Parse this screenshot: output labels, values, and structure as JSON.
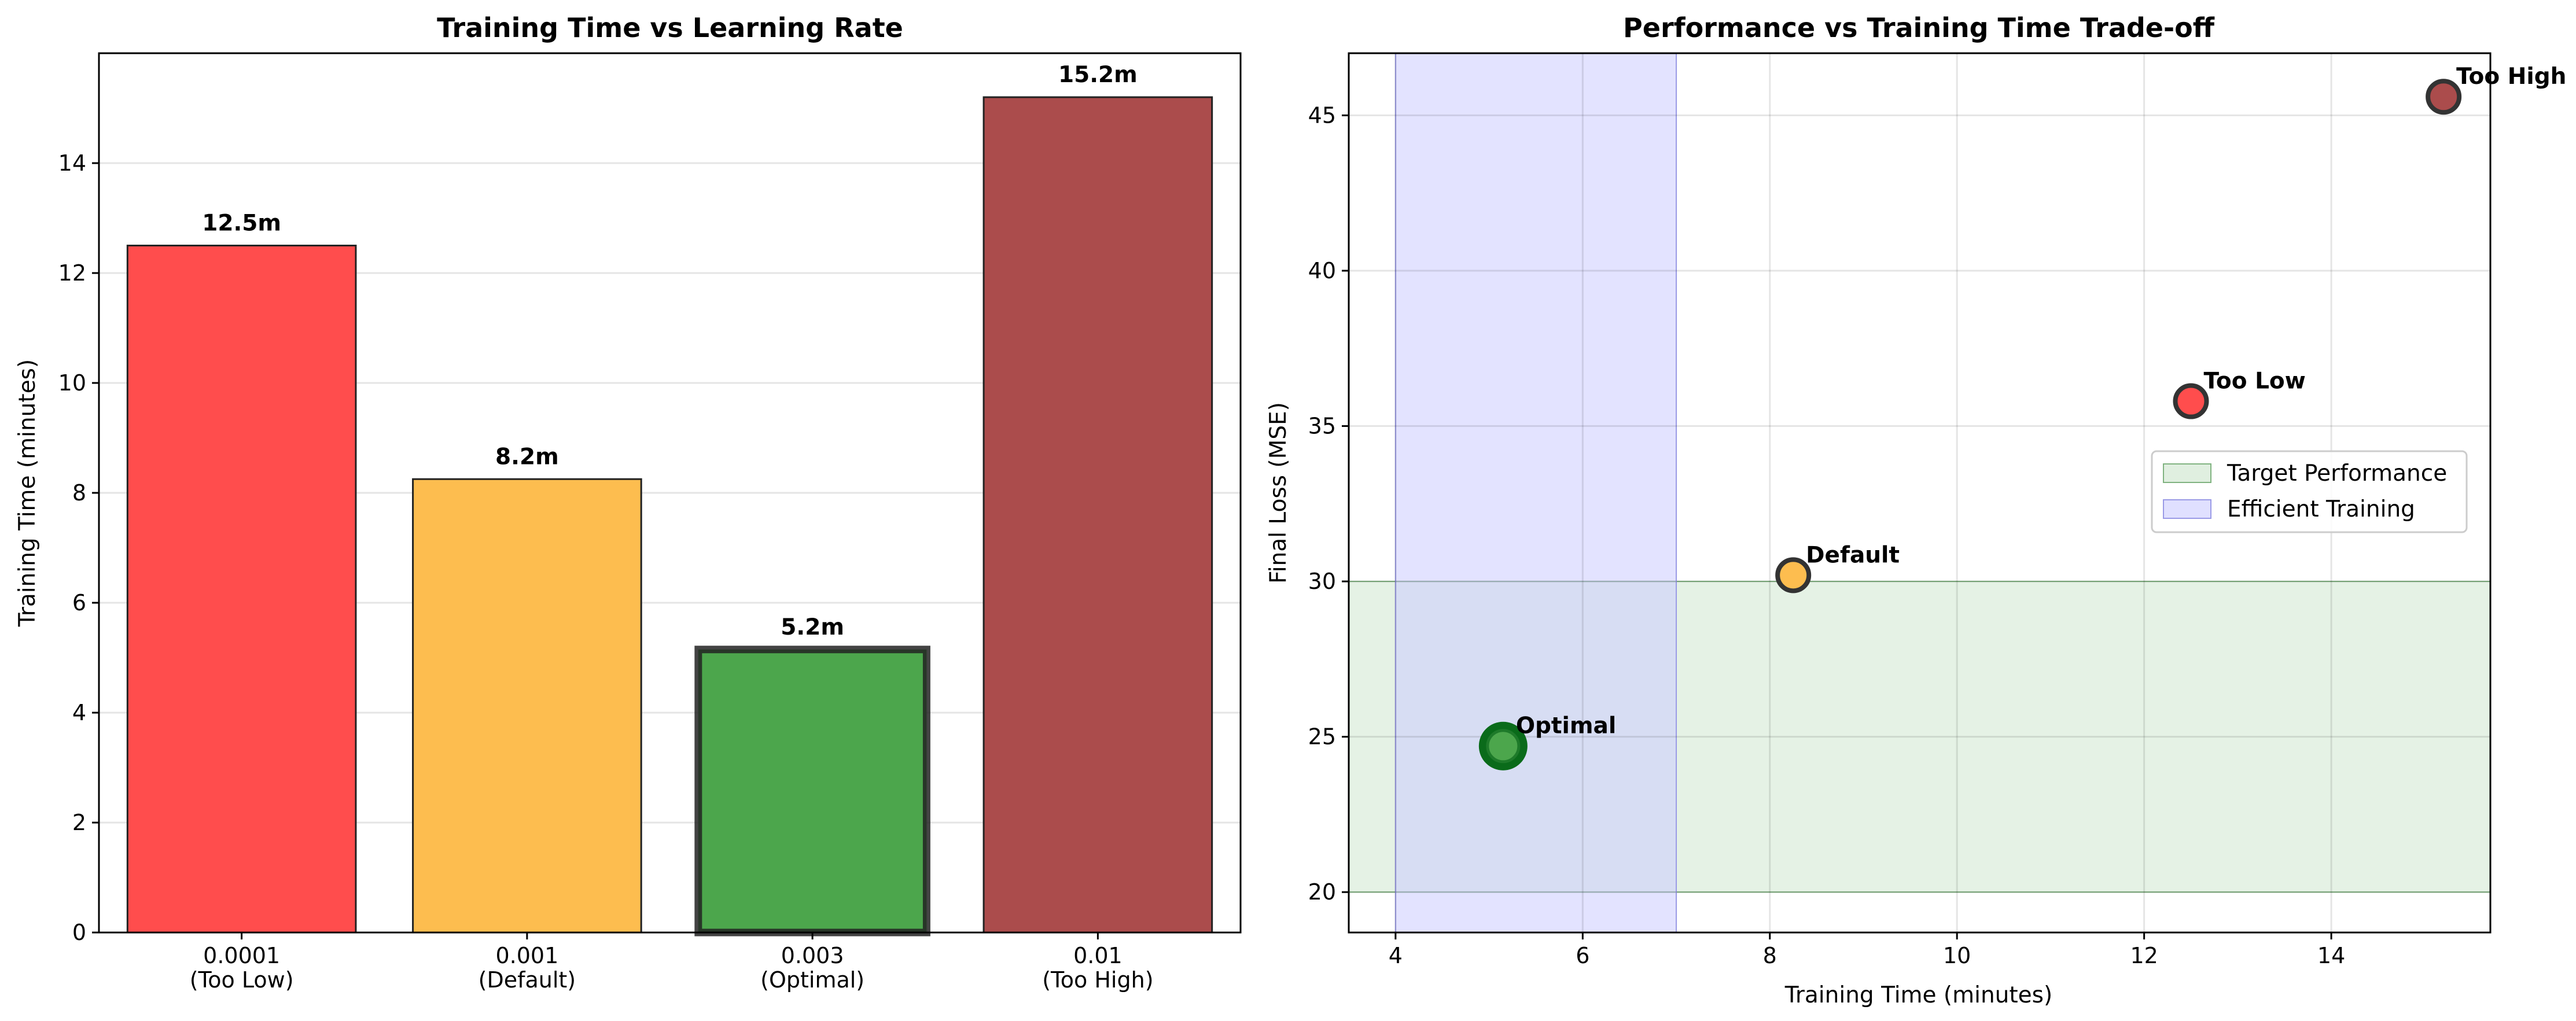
{
  "chart_data": [
    {
      "type": "bar",
      "title": "Training Time vs Learning Rate",
      "xlabel": "",
      "ylabel": "Training Time (minutes)",
      "ylim": [
        0,
        16
      ],
      "yticks": [
        0,
        2,
        4,
        6,
        8,
        10,
        12,
        14
      ],
      "grid": "y",
      "categories": [
        {
          "rate": "0.0001",
          "tag": "(Too Low)"
        },
        {
          "rate": "0.001",
          "tag": "(Default)"
        },
        {
          "rate": "0.003",
          "tag": "(Optimal)"
        },
        {
          "rate": "0.01",
          "tag": "(Too High)"
        }
      ],
      "values": [
        12.5,
        8.25,
        5.15,
        15.2
      ],
      "data_labels": [
        "12.5m",
        "8.2m",
        "5.2m",
        "15.2m"
      ],
      "colors": [
        "#ff4d4d",
        "#fdbd4f",
        "#4ca64c",
        "#ab4c4c"
      ],
      "highlight_index": 2
    },
    {
      "type": "scatter",
      "title": "Performance vs Training Time Trade-off",
      "xlabel": "Training Time (minutes)",
      "ylabel": "Final Loss (MSE)",
      "xlim": [
        3.5,
        15.7
      ],
      "ylim": [
        18.7,
        47
      ],
      "xticks": [
        4,
        6,
        8,
        10,
        12,
        14
      ],
      "yticks": [
        20,
        25,
        30,
        35,
        40,
        45
      ],
      "grid": "both",
      "points": [
        {
          "x": 12.5,
          "y": 35.8,
          "label": "Too Low",
          "color": "#ff4d4d"
        },
        {
          "x": 8.25,
          "y": 30.2,
          "label": "Default",
          "color": "#fdbd4f"
        },
        {
          "x": 5.15,
          "y": 24.7,
          "label": "Optimal",
          "color": "#4ca64c",
          "highlight": true
        },
        {
          "x": 15.2,
          "y": 45.6,
          "label": "Too High",
          "color": "#ab4c4c"
        }
      ],
      "regions": [
        {
          "name": "Target Performance",
          "axis": "y",
          "from": 20,
          "to": 30,
          "color": "#cce5cc"
        },
        {
          "name": "Efficient Training",
          "axis": "x",
          "from": 4,
          "to": 7,
          "color": "#ccccff"
        }
      ],
      "legend": "center-right"
    }
  ]
}
